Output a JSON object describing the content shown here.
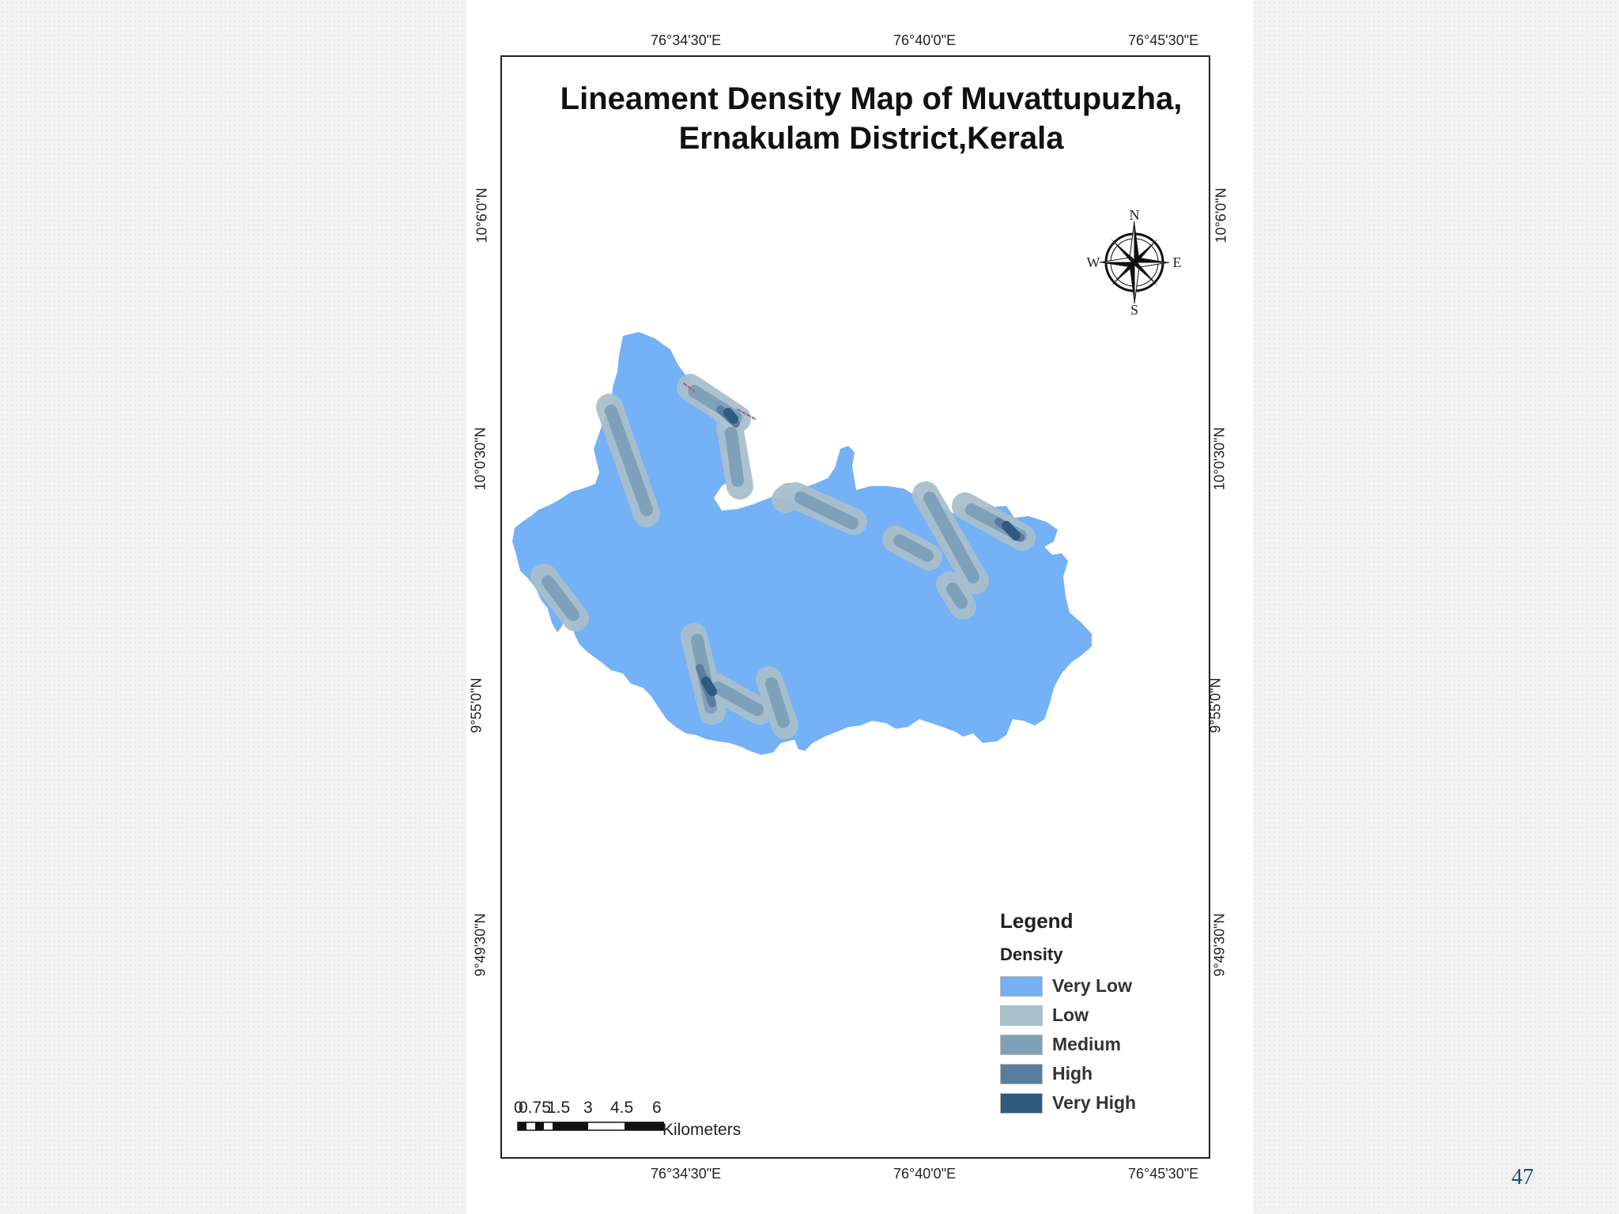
{
  "slide": {
    "page_number": "47"
  },
  "map": {
    "title_line1": "Lineament Density Map of Muvattupuzha,",
    "title_line2": "Ernakulam District,Kerala",
    "lon_ticks": [
      "76°34'30\"E",
      "76°40'0\"E",
      "76°45'30\"E"
    ],
    "lat_ticks": [
      "10°6'0\"N",
      "10°0'30\"N",
      "9°55'0\"N",
      "9°49'30\"N"
    ],
    "compass": {
      "n": "N",
      "s": "S",
      "e": "E",
      "w": "W",
      "icon": "compass-rose-icon"
    },
    "legend": {
      "title": "Legend",
      "subtitle": "Density",
      "items": [
        {
          "label": "Very Low",
          "color": "#74b1f6"
        },
        {
          "label": "Low",
          "color": "#a8bfcc"
        },
        {
          "label": "Medium",
          "color": "#7ea0b8"
        },
        {
          "label": "High",
          "color": "#587d9e"
        },
        {
          "label": "Very High",
          "color": "#2f5a80"
        }
      ]
    },
    "scale_bar": {
      "labels": [
        "0",
        "0.75",
        "1.5",
        "3",
        "4.5",
        "6"
      ],
      "units": "Kilometers"
    }
  }
}
